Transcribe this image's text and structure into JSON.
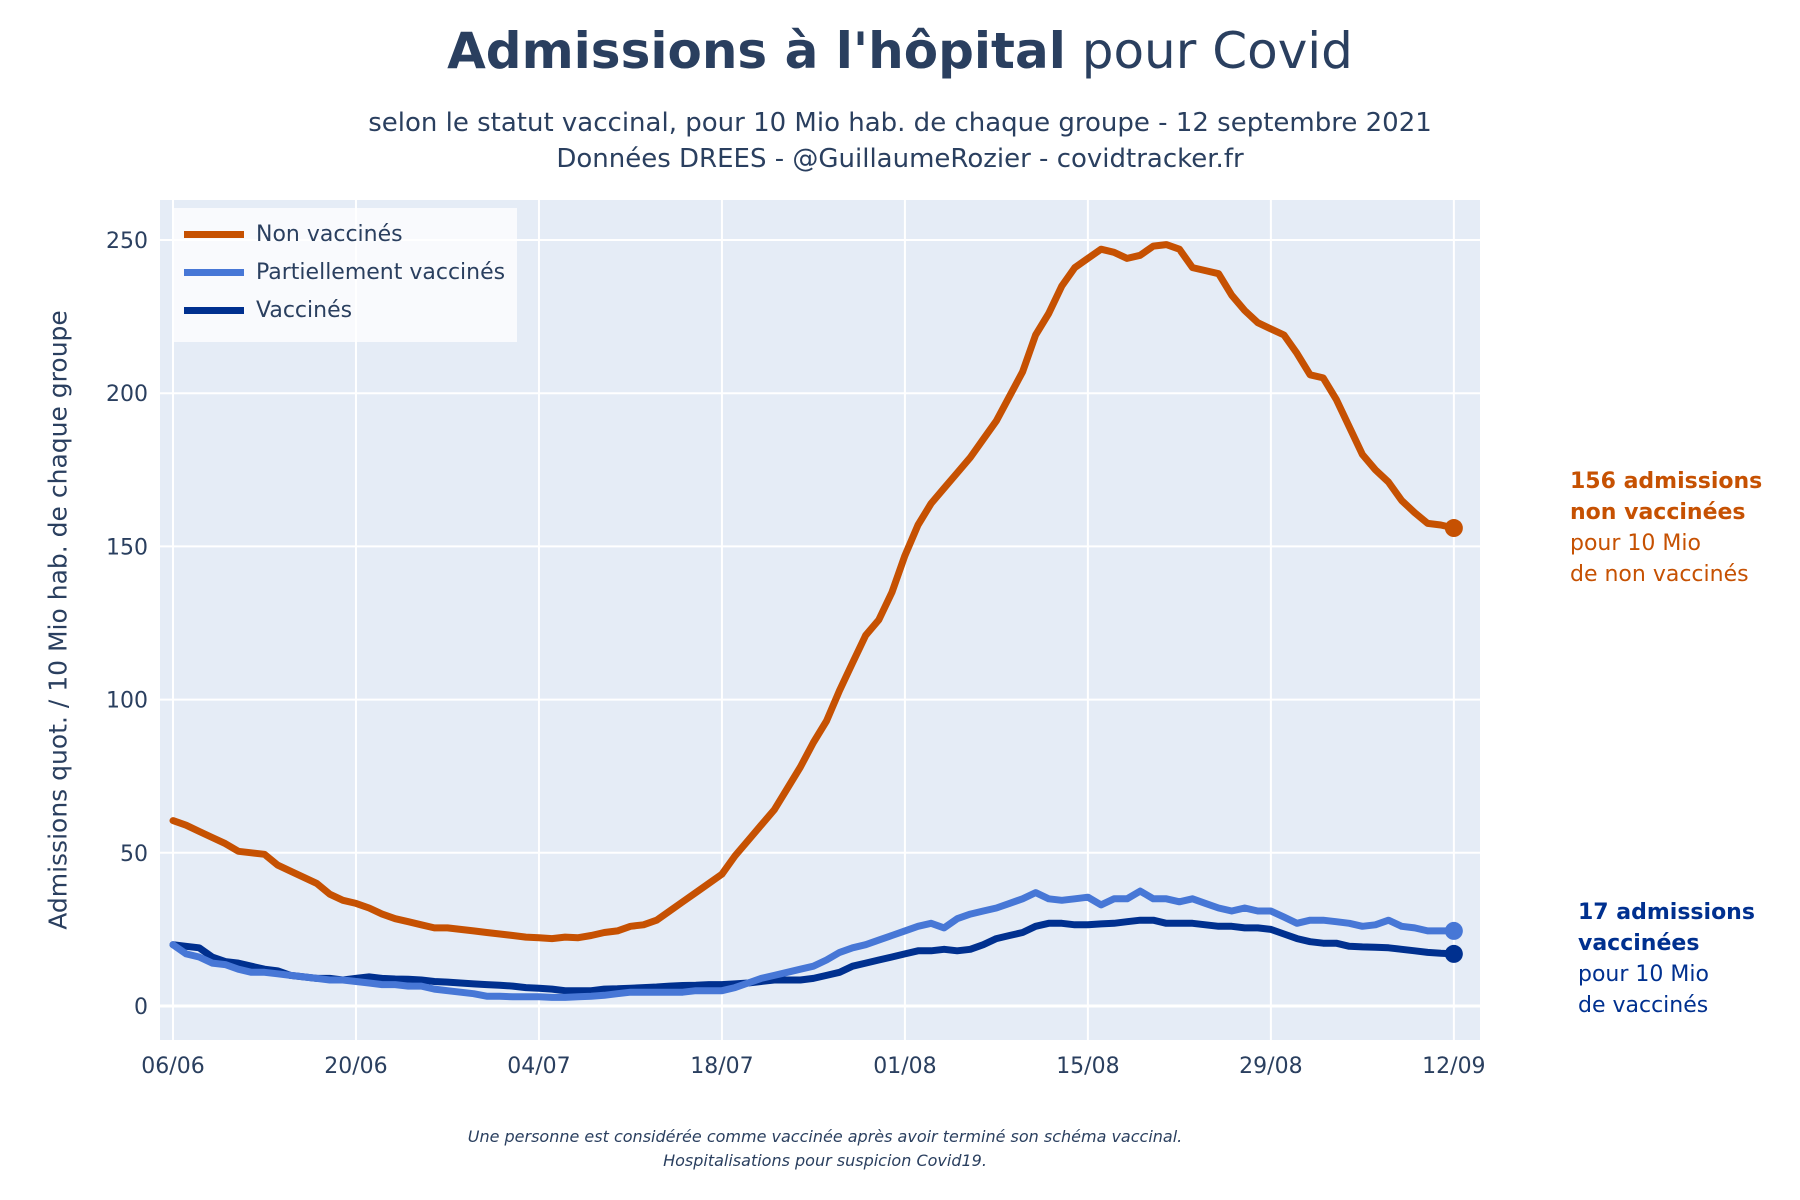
{
  "header": {
    "title_bold": "Admissions à l'hôpital",
    "title_rest": " pour Covid",
    "subtitle_line1": "selon le statut vaccinal, pour 10 Mio hab. de chaque groupe - 12 septembre 2021",
    "subtitle_line2": "Données DREES - @GuillaumeRozier - covidtracker.fr"
  },
  "annotations": {
    "non_vaccines": {
      "bold_line1": "156 admissions",
      "bold_line2": "non vaccinées",
      "line3": "pour 10 Mio",
      "line4": "de non vaccinés",
      "color": "#c65102"
    },
    "vaccines": {
      "bold_line1": "17 admissions",
      "bold_line2": "vaccinées",
      "line3": "pour 10 Mio",
      "line4": "de vaccinés",
      "color": "#00308f"
    }
  },
  "footnote": {
    "line1": "Une personne est considérée comme vaccinée après avoir terminé son schéma vaccinal.",
    "line2": "Hospitalisations pour suspicion Covid19."
  },
  "chart_data": {
    "type": "line",
    "title": "Admissions à l'hôpital pour Covid",
    "xlabel": "",
    "ylabel": "Admissions quot. / 10 Mio hab. de chaque groupe",
    "x_unit": "days since 06/06/2021",
    "x_ticks": [
      {
        "day": 0,
        "label": "06/06"
      },
      {
        "day": 14,
        "label": "20/06"
      },
      {
        "day": 28,
        "label": "04/07"
      },
      {
        "day": 42,
        "label": "18/07"
      },
      {
        "day": 56,
        "label": "01/08"
      },
      {
        "day": 70,
        "label": "15/08"
      },
      {
        "day": 84,
        "label": "29/08"
      },
      {
        "day": 98,
        "label": "12/09"
      }
    ],
    "y_ticks": [
      0,
      50,
      100,
      150,
      200,
      250
    ],
    "xlim": [
      -1,
      107
    ],
    "ylim": [
      -11,
      263
    ],
    "grid": true,
    "legend_position": "top-left",
    "series": [
      {
        "name": "Non vaccinés",
        "color": "#c65102",
        "end_marker": true,
        "points": [
          [
            0,
            60.5
          ],
          [
            1,
            59
          ],
          [
            2,
            57
          ],
          [
            3,
            55
          ],
          [
            4,
            53
          ],
          [
            5,
            50.5
          ],
          [
            6,
            50
          ],
          [
            7,
            49.5
          ],
          [
            8,
            46
          ],
          [
            9,
            44
          ],
          [
            10,
            42
          ],
          [
            11,
            40
          ],
          [
            12,
            36.5
          ],
          [
            13,
            34.5
          ],
          [
            14,
            33.5
          ],
          [
            15,
            32
          ],
          [
            16,
            30
          ],
          [
            17,
            28.5
          ],
          [
            18,
            27.5
          ],
          [
            19,
            26.5
          ],
          [
            20,
            25.5
          ],
          [
            21,
            25.5
          ],
          [
            22,
            25
          ],
          [
            23,
            24.5
          ],
          [
            24,
            24
          ],
          [
            25,
            23.5
          ],
          [
            26,
            23
          ],
          [
            27,
            22.5
          ],
          [
            28,
            22.3
          ],
          [
            29,
            22
          ],
          [
            30,
            22.5
          ],
          [
            31,
            22.3
          ],
          [
            32,
            23
          ],
          [
            33,
            24
          ],
          [
            34,
            24.5
          ],
          [
            35,
            26
          ],
          [
            36,
            26.5
          ],
          [
            37,
            28
          ],
          [
            38,
            31
          ],
          [
            39,
            34
          ],
          [
            40,
            37
          ],
          [
            41,
            40
          ],
          [
            42,
            43
          ],
          [
            43,
            49
          ],
          [
            44,
            54
          ],
          [
            45,
            59
          ],
          [
            46,
            64
          ],
          [
            47,
            71
          ],
          [
            48,
            78
          ],
          [
            49,
            86
          ],
          [
            50,
            93
          ],
          [
            51,
            103
          ],
          [
            52,
            112
          ],
          [
            53,
            121
          ],
          [
            54,
            126
          ],
          [
            55,
            135
          ],
          [
            56,
            147
          ],
          [
            57,
            157
          ],
          [
            58,
            164
          ],
          [
            59,
            169
          ],
          [
            60,
            174
          ],
          [
            61,
            179
          ],
          [
            62,
            185
          ],
          [
            63,
            191
          ],
          [
            64,
            199
          ],
          [
            65,
            207
          ],
          [
            66,
            219
          ],
          [
            67,
            226
          ],
          [
            68,
            235
          ],
          [
            69,
            241
          ],
          [
            70,
            244
          ],
          [
            71,
            247
          ],
          [
            72,
            246
          ],
          [
            73,
            244
          ],
          [
            74,
            245
          ],
          [
            75,
            248
          ],
          [
            76,
            248.5
          ],
          [
            77,
            247
          ],
          [
            78,
            241
          ],
          [
            79,
            240
          ],
          [
            80,
            239
          ],
          [
            81,
            232
          ],
          [
            82,
            227
          ],
          [
            83,
            223
          ],
          [
            84,
            221
          ],
          [
            85,
            219
          ],
          [
            86,
            213
          ],
          [
            87,
            206
          ],
          [
            88,
            205
          ],
          [
            89,
            198
          ],
          [
            90,
            189
          ],
          [
            91,
            180
          ],
          [
            92,
            175
          ],
          [
            93,
            171
          ],
          [
            94,
            165
          ],
          [
            95,
            161
          ],
          [
            96,
            157.5
          ],
          [
            97,
            157
          ],
          [
            98,
            156
          ]
        ]
      },
      {
        "name": "Partiellement vaccinés",
        "color": "#4777d6",
        "end_marker": true,
        "points": [
          [
            0,
            20
          ],
          [
            1,
            17
          ],
          [
            2,
            16
          ],
          [
            3,
            14
          ],
          [
            4,
            13.5
          ],
          [
            5,
            12
          ],
          [
            6,
            11
          ],
          [
            7,
            11
          ],
          [
            8,
            10.5
          ],
          [
            9,
            10
          ],
          [
            10,
            9.5
          ],
          [
            11,
            9
          ],
          [
            12,
            8.5
          ],
          [
            13,
            8.5
          ],
          [
            14,
            8
          ],
          [
            15,
            7.5
          ],
          [
            16,
            7
          ],
          [
            17,
            7
          ],
          [
            18,
            6.5
          ],
          [
            19,
            6.5
          ],
          [
            20,
            5.5
          ],
          [
            21,
            5
          ],
          [
            22,
            4.5
          ],
          [
            23,
            4
          ],
          [
            24,
            3.2
          ],
          [
            25,
            3.2
          ],
          [
            26,
            3
          ],
          [
            27,
            3
          ],
          [
            28,
            3
          ],
          [
            29,
            2.8
          ],
          [
            30,
            2.8
          ],
          [
            31,
            3
          ],
          [
            32,
            3.2
          ],
          [
            33,
            3.5
          ],
          [
            34,
            4
          ],
          [
            35,
            4.5
          ],
          [
            36,
            4.5
          ],
          [
            37,
            4.5
          ],
          [
            38,
            4.5
          ],
          [
            39,
            4.5
          ],
          [
            40,
            5
          ],
          [
            41,
            5
          ],
          [
            42,
            5
          ],
          [
            43,
            6
          ],
          [
            44,
            7.5
          ],
          [
            45,
            9
          ],
          [
            46,
            10
          ],
          [
            47,
            11
          ],
          [
            48,
            12
          ],
          [
            49,
            13
          ],
          [
            50,
            15
          ],
          [
            51,
            17.5
          ],
          [
            52,
            19
          ],
          [
            53,
            20
          ],
          [
            54,
            21.5
          ],
          [
            55,
            23
          ],
          [
            56,
            24.5
          ],
          [
            57,
            26
          ],
          [
            58,
            27
          ],
          [
            59,
            25.5
          ],
          [
            60,
            28.5
          ],
          [
            61,
            30
          ],
          [
            62,
            31
          ],
          [
            63,
            32
          ],
          [
            64,
            33.5
          ],
          [
            65,
            35
          ],
          [
            66,
            37
          ],
          [
            67,
            35
          ],
          [
            68,
            34.5
          ],
          [
            69,
            35
          ],
          [
            70,
            35.5
          ],
          [
            71,
            33
          ],
          [
            72,
            35
          ],
          [
            73,
            35
          ],
          [
            74,
            37.5
          ],
          [
            75,
            35
          ],
          [
            76,
            35
          ],
          [
            77,
            34
          ],
          [
            78,
            35
          ],
          [
            79,
            33.5
          ],
          [
            80,
            32
          ],
          [
            81,
            31
          ],
          [
            82,
            32
          ],
          [
            83,
            31
          ],
          [
            84,
            31
          ],
          [
            85,
            29
          ],
          [
            86,
            27
          ],
          [
            87,
            28
          ],
          [
            88,
            28
          ],
          [
            89,
            27.5
          ],
          [
            90,
            27
          ],
          [
            91,
            26
          ],
          [
            92,
            26.5
          ],
          [
            93,
            28
          ],
          [
            94,
            26
          ],
          [
            95,
            25.5
          ],
          [
            96,
            24.5
          ],
          [
            97,
            24.5
          ],
          [
            98,
            24.5
          ]
        ]
      },
      {
        "name": "Vaccinés",
        "color": "#00308f",
        "end_marker": true,
        "points": [
          [
            0,
            20
          ],
          [
            1,
            19.5
          ],
          [
            2,
            19
          ],
          [
            3,
            16
          ],
          [
            4,
            14.5
          ],
          [
            5,
            14
          ],
          [
            6,
            13
          ],
          [
            7,
            12
          ],
          [
            8,
            11.5
          ],
          [
            9,
            10
          ],
          [
            10,
            9.5
          ],
          [
            11,
            9
          ],
          [
            12,
            9
          ],
          [
            13,
            8.5
          ],
          [
            14,
            9
          ],
          [
            15,
            9.5
          ],
          [
            16,
            9
          ],
          [
            17,
            8.8
          ],
          [
            18,
            8.7
          ],
          [
            19,
            8.5
          ],
          [
            20,
            8
          ],
          [
            21,
            7.8
          ],
          [
            22,
            7.5
          ],
          [
            23,
            7.2
          ],
          [
            24,
            7
          ],
          [
            25,
            6.8
          ],
          [
            26,
            6.5
          ],
          [
            27,
            6
          ],
          [
            28,
            5.8
          ],
          [
            29,
            5.5
          ],
          [
            30,
            5
          ],
          [
            31,
            5
          ],
          [
            32,
            5
          ],
          [
            33,
            5.5
          ],
          [
            34,
            5.6
          ],
          [
            35,
            5.8
          ],
          [
            36,
            6
          ],
          [
            37,
            6.2
          ],
          [
            38,
            6.5
          ],
          [
            39,
            6.7
          ],
          [
            40,
            6.8
          ],
          [
            41,
            7
          ],
          [
            42,
            7
          ],
          [
            43,
            7.2
          ],
          [
            44,
            7.5
          ],
          [
            45,
            8
          ],
          [
            46,
            8.5
          ],
          [
            47,
            8.5
          ],
          [
            48,
            8.5
          ],
          [
            49,
            9
          ],
          [
            50,
            10
          ],
          [
            51,
            11
          ],
          [
            52,
            13
          ],
          [
            53,
            14
          ],
          [
            54,
            15
          ],
          [
            55,
            16
          ],
          [
            56,
            17
          ],
          [
            57,
            18
          ],
          [
            58,
            18
          ],
          [
            59,
            18.5
          ],
          [
            60,
            18
          ],
          [
            61,
            18.5
          ],
          [
            62,
            20
          ],
          [
            63,
            22
          ],
          [
            64,
            23
          ],
          [
            65,
            24
          ],
          [
            66,
            26
          ],
          [
            67,
            27
          ],
          [
            68,
            27
          ],
          [
            69,
            26.5
          ],
          [
            70,
            26.5
          ],
          [
            71,
            26.8
          ],
          [
            72,
            27
          ],
          [
            73,
            27.5
          ],
          [
            74,
            28
          ],
          [
            75,
            28
          ],
          [
            76,
            27
          ],
          [
            77,
            27
          ],
          [
            78,
            27
          ],
          [
            79,
            26.5
          ],
          [
            80,
            26
          ],
          [
            81,
            26
          ],
          [
            82,
            25.5
          ],
          [
            83,
            25.5
          ],
          [
            84,
            25
          ],
          [
            85,
            23.5
          ],
          [
            86,
            22
          ],
          [
            87,
            21
          ],
          [
            88,
            20.5
          ],
          [
            89,
            20.5
          ],
          [
            90,
            19.5
          ],
          [
            91,
            19.3
          ],
          [
            92,
            19.2
          ],
          [
            93,
            19
          ],
          [
            94,
            18.5
          ],
          [
            95,
            18
          ],
          [
            96,
            17.5
          ],
          [
            97,
            17.2
          ],
          [
            98,
            17
          ]
        ]
      }
    ]
  }
}
